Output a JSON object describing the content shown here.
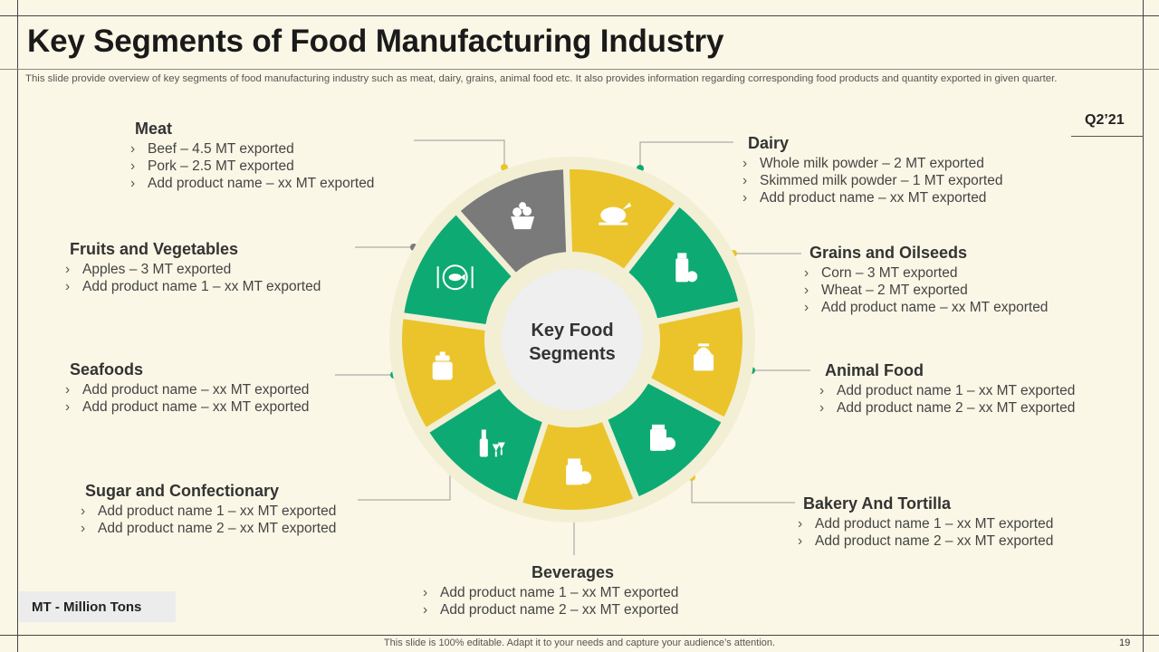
{
  "title": "Key Segments of Food Manufacturing Industry",
  "subtitle": "This slide provide overview of key segments of food manufacturing industry such as meat, dairy, grains, animal food etc. It also provides information regarding corresponding food products and quantity exported in given quarter.",
  "quarter": "Q2’21",
  "center_label": [
    "Key Food",
    "Segments"
  ],
  "colors": {
    "green": "#0eaa74",
    "yellow": "#ebc42b",
    "gray": "#7a7a7a",
    "center": "#efefef",
    "ring": "#f2efd5",
    "background": "#fbf7e6"
  },
  "segments": [
    {
      "id": "meat",
      "title": "Meat",
      "items": [
        "Beef – 4.5 MT exported",
        "Pork – 2.5 MT exported",
        "Add product name – xx MT exported"
      ],
      "color": "yellow",
      "icon": "chicken-icon"
    },
    {
      "id": "dairy",
      "title": "Dairy",
      "items": [
        "Whole milk powder – 2 MT exported",
        "Skimmed milk powder – 1 MT exported",
        "Add product name – xx MT exported"
      ],
      "color": "green",
      "icon": "milk-bottle-icon"
    },
    {
      "id": "grains",
      "title": "Grains and Oilseeds",
      "items": [
        "Corn – 3 MT exported",
        "Wheat – 2 MT exported",
        "Add product name – xx MT exported"
      ],
      "color": "yellow",
      "icon": "grain-jar-icon"
    },
    {
      "id": "animal-food",
      "title": "Animal Food",
      "items": [
        "Add product name 1 – xx MT exported",
        "Add product name 2 – xx MT exported"
      ],
      "color": "green",
      "icon": "pet-food-bag-icon"
    },
    {
      "id": "bakery",
      "title": "Bakery And Tortilla",
      "items": [
        "Add product name 1 – xx MT exported",
        "Add product name 2 – xx MT exported"
      ],
      "color": "yellow",
      "icon": "bakery-bag-icon"
    },
    {
      "id": "beverages",
      "title": "Beverages",
      "items": [
        "Add product name 1  – xx MT exported",
        "Add product name 2 – xx MT exported"
      ],
      "color": "green",
      "icon": "wine-bottle-icon"
    },
    {
      "id": "sugar",
      "title": "Sugar and Confectionary",
      "items": [
        "Add product name 1  – xx MT exported",
        "Add product name 2 – xx MT exported"
      ],
      "color": "yellow",
      "icon": "candy-jar-icon"
    },
    {
      "id": "seafoods",
      "title": "Seafoods",
      "items": [
        "Add product name – xx MT exported",
        "Add product name – xx MT exported"
      ],
      "color": "green",
      "icon": "fish-plate-icon"
    },
    {
      "id": "fruits",
      "title": "Fruits and Vegetables",
      "items": [
        "Apples – 3 MT exported",
        "Add product name 1 – xx MT exported"
      ],
      "color": "gray",
      "icon": "fruit-basket-icon"
    }
  ],
  "legend": "MT - Million  Tons",
  "footer": "This slide is 100% editable. Adapt it to your needs and capture your audience’s attention.",
  "page_number": "19"
}
